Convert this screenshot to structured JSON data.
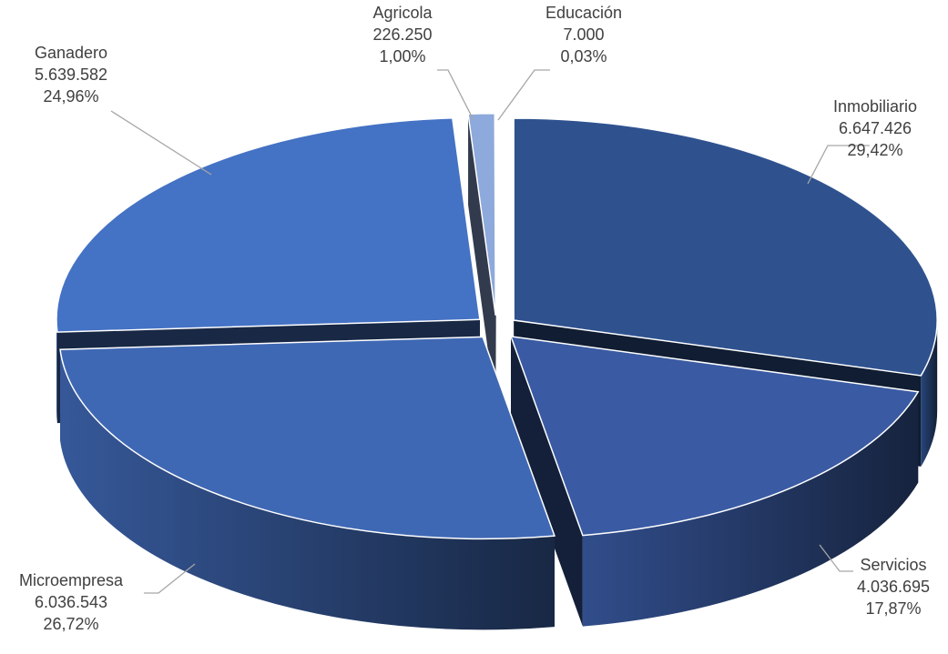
{
  "chart_data": {
    "type": "pie",
    "style": "3d-exploded",
    "title": "",
    "slices": [
      {
        "name": "Inmobiliario",
        "value_label": "6.647.426",
        "percent_label": "29,42%",
        "value": 6647426,
        "percent": 29.42,
        "color": "#2f528f"
      },
      {
        "name": "Servicios",
        "value_label": "4.036.695",
        "percent_label": "17,87%",
        "value": 4036695,
        "percent": 17.87,
        "color": "#3a5ba3"
      },
      {
        "name": "Microempresa",
        "value_label": "6.036.543",
        "percent_label": "26,72%",
        "value": 6036543,
        "percent": 26.72,
        "color": "#3f68b4"
      },
      {
        "name": "Ganadero",
        "value_label": "5.639.582",
        "percent_label": "24,96%",
        "value": 5639582,
        "percent": 24.96,
        "color": "#4472c4"
      },
      {
        "name": "Agricola",
        "value_label": "226.250",
        "percent_label": "1,00%",
        "value": 226250,
        "percent": 1.0,
        "color": "#8ea9db"
      },
      {
        "name": "Educación",
        "value_label": "7.000",
        "percent_label": "0,03%",
        "value": 7000,
        "percent": 0.03,
        "color": "#b4c7e7"
      }
    ]
  }
}
